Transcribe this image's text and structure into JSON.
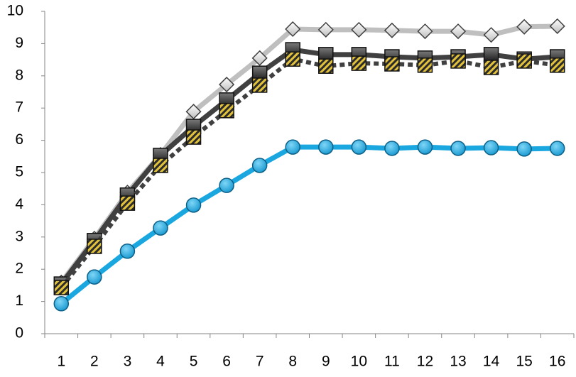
{
  "chart_data": {
    "type": "line",
    "categories": [
      "1",
      "2",
      "3",
      "4",
      "5",
      "6",
      "7",
      "8",
      "9",
      "10",
      "11",
      "12",
      "13",
      "14",
      "15",
      "16"
    ],
    "ylim": [
      0,
      10
    ],
    "yticks": [
      0,
      1,
      2,
      3,
      4,
      5,
      6,
      7,
      8,
      9,
      10
    ],
    "grid": false,
    "series": [
      {
        "color": "#1aa7e0",
        "marker": "circle",
        "dash": "solid",
        "values": [
          0.93,
          1.76,
          2.56,
          3.28,
          3.99,
          4.6,
          5.22,
          5.79,
          5.79,
          5.79,
          5.75,
          5.79,
          5.75,
          5.77,
          5.73,
          5.75
        ]
      },
      {
        "color": "#bfbfbf",
        "marker": "diamond",
        "dash": "solid",
        "values": [
          1.59,
          2.95,
          4.38,
          5.55,
          6.89,
          7.73,
          8.55,
          9.45,
          9.43,
          9.43,
          9.41,
          9.38,
          9.38,
          9.27,
          9.52,
          9.54
        ]
      },
      {
        "color": "#404040",
        "marker": "square",
        "dash": "solid",
        "values": [
          1.54,
          2.89,
          4.3,
          5.53,
          6.43,
          7.25,
          8.08,
          8.81,
          8.66,
          8.66,
          8.59,
          8.55,
          8.59,
          8.66,
          8.52,
          8.59
        ]
      },
      {
        "color": "#404040",
        "marker": "hatched-square",
        "dash": "dotted",
        "values": [
          1.43,
          2.71,
          4.05,
          5.22,
          6.1,
          6.92,
          7.71,
          8.52,
          8.3,
          8.39,
          8.37,
          8.33,
          8.46,
          8.26,
          8.46,
          8.33
        ]
      }
    ]
  }
}
